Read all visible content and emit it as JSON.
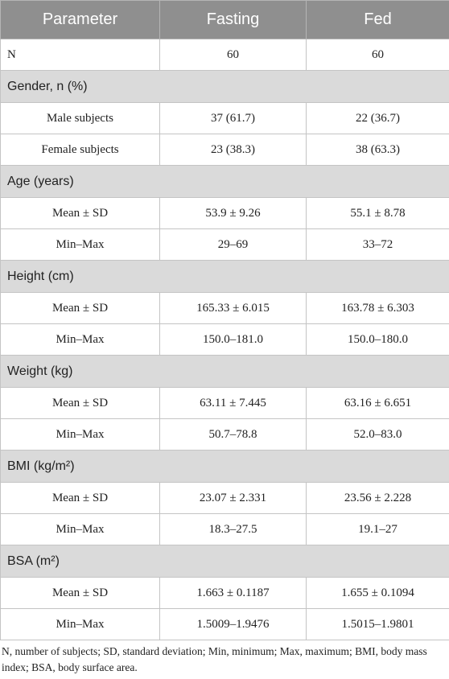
{
  "table": {
    "header": [
      "Parameter",
      "Fasting",
      "Fed"
    ],
    "rows": [
      [
        "N",
        "60",
        "60"
      ],
      [
        "Gender, n (%)"
      ],
      [
        "Male subjects",
        "37 (61.7)",
        "22 (36.7)"
      ],
      [
        "Female subjects",
        "23 (38.3)",
        "38 (63.3)"
      ],
      [
        "Age (years)"
      ],
      [
        "Mean ± SD",
        "53.9 ± 9.26",
        "55.1 ± 8.78"
      ],
      [
        "Min–Max",
        "29–69",
        "33–72"
      ],
      [
        "Height (cm)"
      ],
      [
        "Mean ± SD",
        "165.33 ± 6.015",
        "163.78 ± 6.303"
      ],
      [
        "Min–Max",
        "150.0–181.0",
        "150.0–180.0"
      ],
      [
        "Weight (kg)"
      ],
      [
        "Mean ± SD",
        "63.11 ± 7.445",
        "63.16 ± 6.651"
      ],
      [
        "Min–Max",
        "50.7–78.8",
        "52.0–83.0"
      ],
      [
        "BMI (kg/m²)"
      ],
      [
        "Mean ± SD",
        "23.07 ± 2.331",
        "23.56 ± 2.228"
      ],
      [
        "Min–Max",
        "18.3–27.5",
        "19.1–27"
      ],
      [
        "BSA (m²)"
      ],
      [
        "Mean ± SD",
        "1.663 ± 0.1187",
        "1.655 ± 0.1094"
      ],
      [
        "Min–Max",
        "1.5009–1.9476",
        "1.5015–1.9801"
      ]
    ]
  },
  "footnote": "N, number of subjects; SD, standard deviation; Min, minimum; Max, maximum; BMI, body mass index; BSA, body surface area."
}
